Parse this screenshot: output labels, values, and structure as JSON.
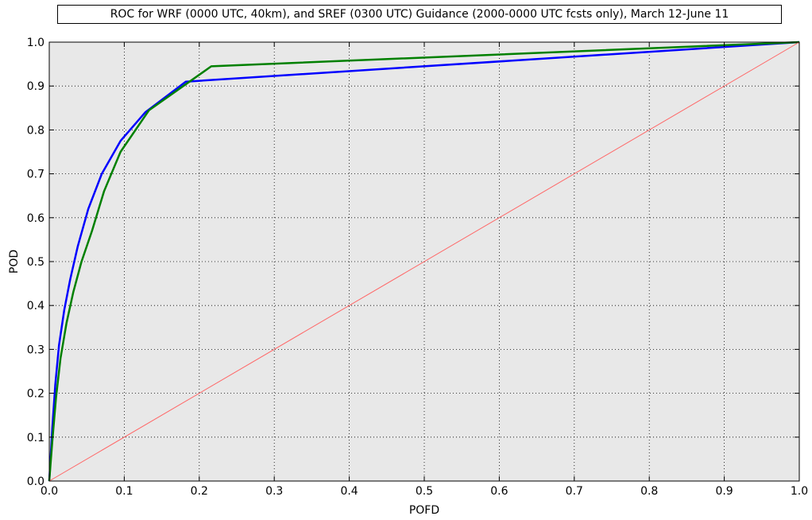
{
  "chart_data": {
    "type": "line",
    "title": "ROC for WRF (0000 UTC, 40km), and SREF (0300 UTC) Guidance (2000-0000 UTC fcsts only), March 12-June 11",
    "xlabel": "POFD",
    "ylabel": "POD",
    "xlim": [
      0.0,
      1.0
    ],
    "ylim": [
      0.0,
      1.0
    ],
    "grid": true,
    "x_ticks": [
      "0.0",
      "0.1",
      "0.2",
      "0.3",
      "0.4",
      "0.5",
      "0.6",
      "0.7",
      "0.8",
      "0.9",
      "1.0"
    ],
    "y_ticks": [
      "0.0",
      "0.1",
      "0.2",
      "0.3",
      "0.4",
      "0.5",
      "0.6",
      "0.7",
      "0.8",
      "0.9",
      "1.0"
    ],
    "background_color": "#e8e8e8",
    "series": [
      {
        "color": "#0000ff",
        "x": [
          0.0,
          0.004,
          0.008,
          0.013,
          0.02,
          0.028,
          0.038,
          0.052,
          0.07,
          0.095,
          0.128,
          0.182,
          1.0
        ],
        "y": [
          0.0,
          0.12,
          0.22,
          0.31,
          0.39,
          0.46,
          0.535,
          0.62,
          0.7,
          0.775,
          0.84,
          0.91,
          1.0
        ]
      },
      {
        "color": "#008000",
        "x": [
          0.0,
          0.004,
          0.009,
          0.015,
          0.023,
          0.032,
          0.043,
          0.057,
          0.073,
          0.095,
          0.133,
          0.216,
          1.0
        ],
        "y": [
          0.0,
          0.09,
          0.19,
          0.28,
          0.36,
          0.43,
          0.5,
          0.57,
          0.66,
          0.75,
          0.845,
          0.945,
          1.0
        ]
      },
      {
        "color": "#ff6666",
        "x": [
          0.0,
          1.0
        ],
        "y": [
          0.0,
          1.0
        ]
      }
    ]
  }
}
